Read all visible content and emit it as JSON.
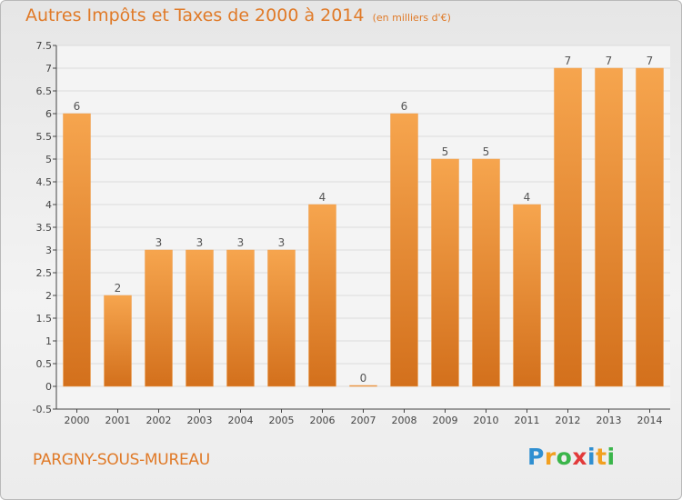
{
  "title": "Autres Impôts et Taxes de 2000 à 2014",
  "subtitle": "(en milliers d'€)",
  "commune": "PARGNY-SOUS-MUREAU",
  "brand": {
    "letters": [
      "P",
      "r",
      "o",
      "x",
      "i",
      "t",
      "i"
    ],
    "colors": [
      "#2f8fd1",
      "#f2a020",
      "#3ab54a",
      "#e23a3a",
      "#2f8fd1",
      "#f2a020",
      "#3ab54a"
    ]
  },
  "chart_data": {
    "type": "bar",
    "categories": [
      "2000",
      "2001",
      "2002",
      "2003",
      "2004",
      "2005",
      "2006",
      "2007",
      "2008",
      "2009",
      "2010",
      "2011",
      "2012",
      "2013",
      "2014"
    ],
    "values": [
      6,
      2,
      3,
      3,
      3,
      3,
      4,
      0,
      6,
      5,
      5,
      4,
      7,
      7,
      7
    ],
    "value_labels": [
      "6",
      "2",
      "3",
      "3",
      "3",
      "3",
      "4",
      "0",
      "6",
      "5",
      "5",
      "4",
      "7",
      "7",
      "7"
    ],
    "yticks": [
      "-0.5",
      "0",
      "0.5",
      "1",
      "1.5",
      "2",
      "2.5",
      "3",
      "3.5",
      "4",
      "4.5",
      "5",
      "5.5",
      "6",
      "6.5",
      "7",
      "7.5"
    ],
    "ylim": [
      -0.5,
      7.5
    ],
    "grid": true,
    "colors": {
      "bar_light": "#f6a54e",
      "bar_dark": "#d3701c",
      "label": "#555555",
      "axis": "#444444",
      "grid": "#dddddd",
      "title": "#e07a28"
    }
  }
}
